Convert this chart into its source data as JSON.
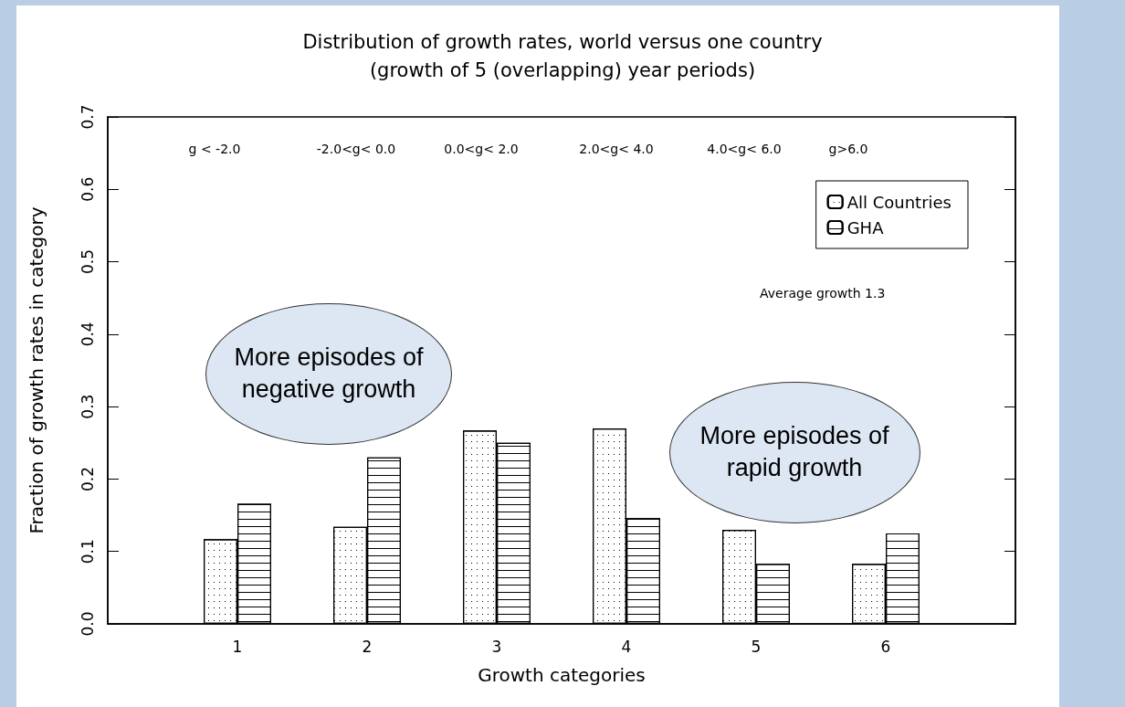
{
  "chart_data": {
    "type": "bar",
    "title": "Distribution of growth rates, world versus one country",
    "subtitle": "(growth of 5 (overlapping) year periods)",
    "xlabel": "Growth categories",
    "ylabel": "Fraction of growth rates in category",
    "x": [
      1,
      2,
      3,
      4,
      5,
      6
    ],
    "xlim": [
      0,
      7
    ],
    "xticks": [
      1,
      2,
      3,
      4,
      5,
      6
    ],
    "ylim": [
      0,
      0.7
    ],
    "yticks": [
      {
        "value": 0,
        "label": "0.0"
      },
      {
        "value": 0.1,
        "label": "0.1"
      },
      {
        "value": 0.2,
        "label": "0.2"
      },
      {
        "value": 0.3,
        "label": "0.3"
      },
      {
        "value": 0.4,
        "label": "0.4"
      },
      {
        "value": 0.5,
        "label": "0.5"
      },
      {
        "value": 0.6,
        "label": "0.6"
      },
      {
        "value": 0.7,
        "label": "0.7"
      }
    ],
    "series": [
      {
        "name": "All Countries",
        "color": "#ffffff",
        "values": [
          0.117,
          0.134,
          0.267,
          0.27,
          0.13,
          0.083
        ]
      },
      {
        "name": "GHA",
        "color": "#ffffff",
        "values": [
          0.166,
          0.23,
          0.25,
          0.146,
          0.083,
          0.125
        ]
      }
    ],
    "legend": "top right",
    "annotations": [
      "g < -2.0",
      "-2.0<g< 0.0",
      "0.0<g< 2.0",
      "2.0<g< 4.0",
      "4.0<g< 6.0",
      "g>6.0",
      "Average growth 1.3",
      "More episodes of negative growth",
      "More episodes of rapid growth"
    ]
  }
}
